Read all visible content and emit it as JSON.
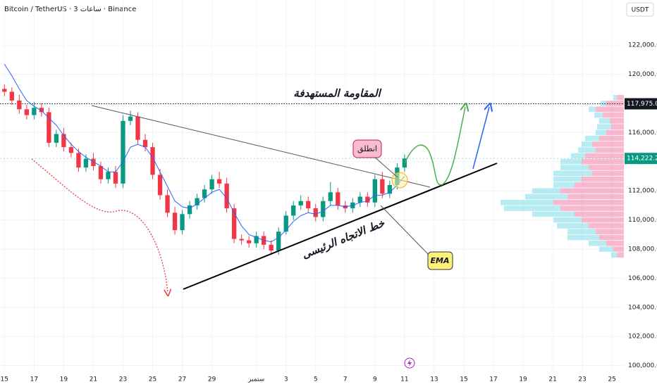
{
  "header": {
    "title": "Bitcoin / TetherUS · 3 ساعات · Binance",
    "currency": "USDT"
  },
  "chart_data": {
    "type": "candlestick",
    "xlim": [
      -0.3,
      41.8
    ],
    "xticks": [
      {
        "value": 0,
        "label": "15"
      },
      {
        "value": 2,
        "label": "17"
      },
      {
        "value": 4,
        "label": "19"
      },
      {
        "value": 6,
        "label": "21"
      },
      {
        "value": 8,
        "label": "23"
      },
      {
        "value": 10,
        "label": "25"
      },
      {
        "value": 12,
        "label": "27"
      },
      {
        "value": 14,
        "label": "29"
      },
      {
        "value": 17,
        "label": "ستمبر"
      },
      {
        "value": 19,
        "label": "3"
      },
      {
        "value": 21,
        "label": "5"
      },
      {
        "value": 23,
        "label": "7"
      },
      {
        "value": 25,
        "label": "9"
      },
      {
        "value": 27,
        "label": "11"
      },
      {
        "value": 29,
        "label": "13"
      },
      {
        "value": 31,
        "label": "15"
      },
      {
        "value": 33,
        "label": "17"
      },
      {
        "value": 35,
        "label": "19"
      },
      {
        "value": 37,
        "label": "21"
      },
      {
        "value": 39,
        "label": "23"
      },
      {
        "value": 41,
        "label": "25"
      }
    ],
    "ylim": [
      99500,
      125100
    ],
    "yticks": [
      {
        "value": 100000,
        "label": "100,000.00"
      },
      {
        "value": 102000,
        "label": "102,000.00"
      },
      {
        "value": 104000,
        "label": "104,000.00"
      },
      {
        "value": 106000,
        "label": "106,000.00"
      },
      {
        "value": 108000,
        "label": "108,000.00"
      },
      {
        "value": 110000,
        "label": "110,000.00"
      },
      {
        "value": 112000,
        "label": "112,000.00"
      },
      {
        "value": 114000,
        "label": "114,000.00"
      },
      {
        "value": 116000,
        "label": "116,000.00"
      },
      {
        "value": 118000,
        "label": "118,000.00"
      },
      {
        "value": 120000,
        "label": "120,000.00"
      },
      {
        "value": 122000,
        "label": "122,000.00"
      }
    ],
    "grid": true,
    "x": [
      0,
      0.5,
      1,
      1.5,
      2,
      2.5,
      3,
      3.5,
      4,
      4.5,
      5,
      5.5,
      6,
      6.5,
      7,
      7.5,
      8,
      8.5,
      9,
      9.5,
      10,
      10.5,
      11,
      11.5,
      12,
      12.5,
      13,
      13.5,
      14,
      14.5,
      15,
      15.5,
      16,
      16.5,
      17,
      17.5,
      18,
      18.5,
      19,
      19.5,
      20,
      20.5,
      21,
      21.5,
      22,
      22.5,
      23,
      23.5,
      24,
      24.5,
      25,
      25.5,
      26,
      26.5,
      27
    ],
    "open": [
      119000,
      118800,
      118200,
      117600,
      117200,
      117700,
      117400,
      115300,
      115900,
      115000,
      114600,
      113600,
      114200,
      113700,
      112800,
      113300,
      112500,
      116800,
      117100,
      115500,
      115000,
      113100,
      111700,
      110500,
      109300,
      110400,
      111000,
      111500,
      112100,
      112800,
      112500,
      110800,
      108700,
      108600,
      108400,
      108900,
      108300,
      107900,
      109200,
      110300,
      111000,
      111300,
      110800,
      110200,
      111300,
      111900,
      111000,
      110800,
      111200,
      111600,
      111200,
      112800,
      111800,
      112400,
      113600
    ],
    "high": [
      119300,
      119100,
      118600,
      117900,
      118100,
      118000,
      117700,
      116200,
      116300,
      115300,
      114900,
      114500,
      114600,
      114000,
      113600,
      113700,
      117200,
      117500,
      117400,
      115900,
      115300,
      113500,
      112100,
      110900,
      110700,
      111300,
      111800,
      112400,
      113100,
      113300,
      112900,
      111100,
      109000,
      108900,
      109200,
      109200,
      108600,
      109500,
      110600,
      111300,
      111700,
      111600,
      111100,
      111600,
      112600,
      112200,
      111300,
      111500,
      111900,
      111900,
      113100,
      113300,
      112700,
      113900,
      114500
    ],
    "low": [
      118500,
      117900,
      117300,
      116900,
      116900,
      117100,
      115000,
      115000,
      114700,
      114300,
      113300,
      113300,
      113400,
      112500,
      112500,
      112200,
      112200,
      116500,
      115200,
      114700,
      112800,
      111400,
      110200,
      109000,
      109000,
      110100,
      110700,
      111200,
      111800,
      112200,
      110500,
      108400,
      108300,
      108100,
      108100,
      108000,
      107600,
      107600,
      109000,
      110000,
      110700,
      110500,
      109900,
      109900,
      111000,
      110700,
      110500,
      110500,
      110900,
      110900,
      110900,
      111500,
      111500,
      112100,
      113300
    ],
    "close": [
      118800,
      118200,
      117600,
      117200,
      117700,
      117400,
      115300,
      115900,
      115000,
      114600,
      113600,
      114200,
      113700,
      112800,
      113300,
      112500,
      116800,
      117100,
      115500,
      115000,
      113100,
      111700,
      110500,
      109300,
      110400,
      111000,
      111500,
      112100,
      112800,
      112500,
      110800,
      108700,
      108600,
      108400,
      108900,
      108300,
      107900,
      109200,
      110300,
      111000,
      111300,
      110800,
      110200,
      111300,
      111900,
      111000,
      110800,
      111200,
      111600,
      111200,
      112800,
      111800,
      112400,
      113600,
      114222.2
    ],
    "up_color": "#089981",
    "down_color": "#f23645",
    "series": [
      {
        "name": "EMA",
        "color": "#2962ff",
        "values": [
          120700,
          119900,
          119000,
          118200,
          117800,
          117500,
          117000,
          116500,
          115800,
          115200,
          114700,
          114300,
          114000,
          113700,
          113300,
          113300,
          114000,
          115000,
          115200,
          115000,
          114300,
          113300,
          112300,
          111300,
          110900,
          110800,
          111100,
          111500,
          111900,
          112100,
          111500,
          110500,
          109600,
          109000,
          108800,
          108600,
          108500,
          108800,
          109300,
          109900,
          110300,
          110500,
          110400,
          110600,
          111000,
          111000,
          110900,
          111000,
          111200,
          111300,
          111700,
          111700,
          111900,
          112400,
          113000
        ]
      }
    ],
    "price_lines": [
      {
        "value": 117975.06,
        "label": "117,975.06",
        "color": "#131722"
      },
      {
        "value": 114222.2,
        "label": "114,222.20",
        "color": "#089981"
      }
    ],
    "annotations": {
      "resistance": "المقاومة المستهدفة",
      "launch": "انطلق",
      "trendline": "خط الاتجاه الرئيسى"
    },
    "volume_profile": {
      "price": [
        118400,
        118000,
        117600,
        117200,
        116800,
        116400,
        116000,
        115600,
        115200,
        114800,
        114400,
        114000,
        113600,
        113200,
        112800,
        112400,
        112000,
        111600,
        111200,
        110800,
        110400,
        110000,
        109600,
        109200,
        108800,
        108400,
        108000,
        107600
      ],
      "sell": [
        10,
        25,
        40,
        30,
        20,
        18,
        25,
        35,
        45,
        40,
        55,
        60,
        50,
        45,
        60,
        70,
        90,
        80,
        100,
        90,
        70,
        60,
        50,
        40,
        35,
        25,
        15,
        10
      ],
      "buy": [
        5,
        8,
        10,
        12,
        15,
        20,
        15,
        20,
        15,
        25,
        20,
        30,
        40,
        55,
        40,
        30,
        40,
        60,
        75,
        80,
        60,
        40,
        45,
        40,
        45,
        25,
        20,
        8
      ],
      "sell_color": "#f06292",
      "buy_color": "#4dd0e1"
    }
  }
}
